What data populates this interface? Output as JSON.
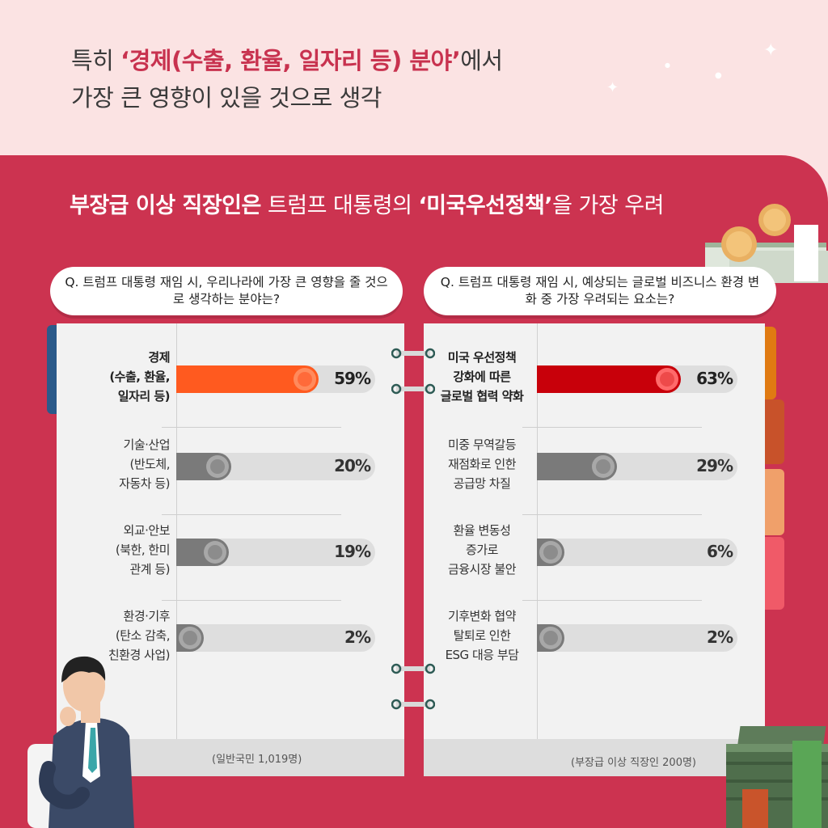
{
  "headline": {
    "line1_a": "특히 ",
    "line1_em": "‘경제(수출, 환율, 일자리 등) 분야’",
    "line1_b": "에서",
    "line2": "가장 큰 영향이 있을 것으로 생각"
  },
  "subhead": {
    "bold": "부장급 이상 직장인은",
    "mid": " 트럼프 대통령의 ",
    "em": "‘미국우선정책’",
    "end": "을 가장 우려"
  },
  "colors": {
    "background_top": "#fbe3e3",
    "background_main": "#cc3350",
    "highlight_left": "#ff5a1f",
    "highlight_right": "#c8000a",
    "bar_gray": "#7a7a7a",
    "track": "#dedede"
  },
  "chart_data": [
    {
      "type": "bar",
      "question": "Q. 트럼프 대통령 재임 시, 우리나라에 가장 큰 영향을 줄 것으로 생각하는 분야는?",
      "categories": [
        [
          "경제",
          "(수출, 환율,",
          "일자리 등)"
        ],
        [
          "기술·산업",
          "(반도체,",
          "자동차 등)"
        ],
        [
          "외교·안보",
          "(북한, 한미",
          "관계 등)"
        ],
        [
          "환경·기후",
          "(탄소 감축,",
          "친환경 사업)"
        ]
      ],
      "values": [
        59,
        20,
        19,
        2
      ],
      "value_labels": [
        "59%",
        "20%",
        "19%",
        "2%"
      ],
      "highlight_index": 0,
      "ylim": [
        0,
        100
      ],
      "footnote": "(일반국민 1,019명)"
    },
    {
      "type": "bar",
      "question": "Q. 트럼프 대통령 재임 시, 예상되는 글로벌 비즈니스 환경 변화 중 가장 우려되는 요소는?",
      "categories": [
        [
          "미국 우선정책",
          "강화에 따른",
          "글로벌 협력 약화"
        ],
        [
          "미중 무역갈등",
          "재점화로 인한",
          "공급망 차질"
        ],
        [
          "환율 변동성",
          "증가로",
          "금융시장 불안"
        ],
        [
          "기후변화 협약",
          "탈퇴로 인한",
          "ESG 대응 부담"
        ]
      ],
      "values": [
        63,
        29,
        6,
        2
      ],
      "value_labels": [
        "63%",
        "29%",
        "6%",
        "2%"
      ],
      "highlight_index": 0,
      "ylim": [
        0,
        100
      ],
      "footnote": "(부장급 이상 직장인 200명)"
    }
  ]
}
